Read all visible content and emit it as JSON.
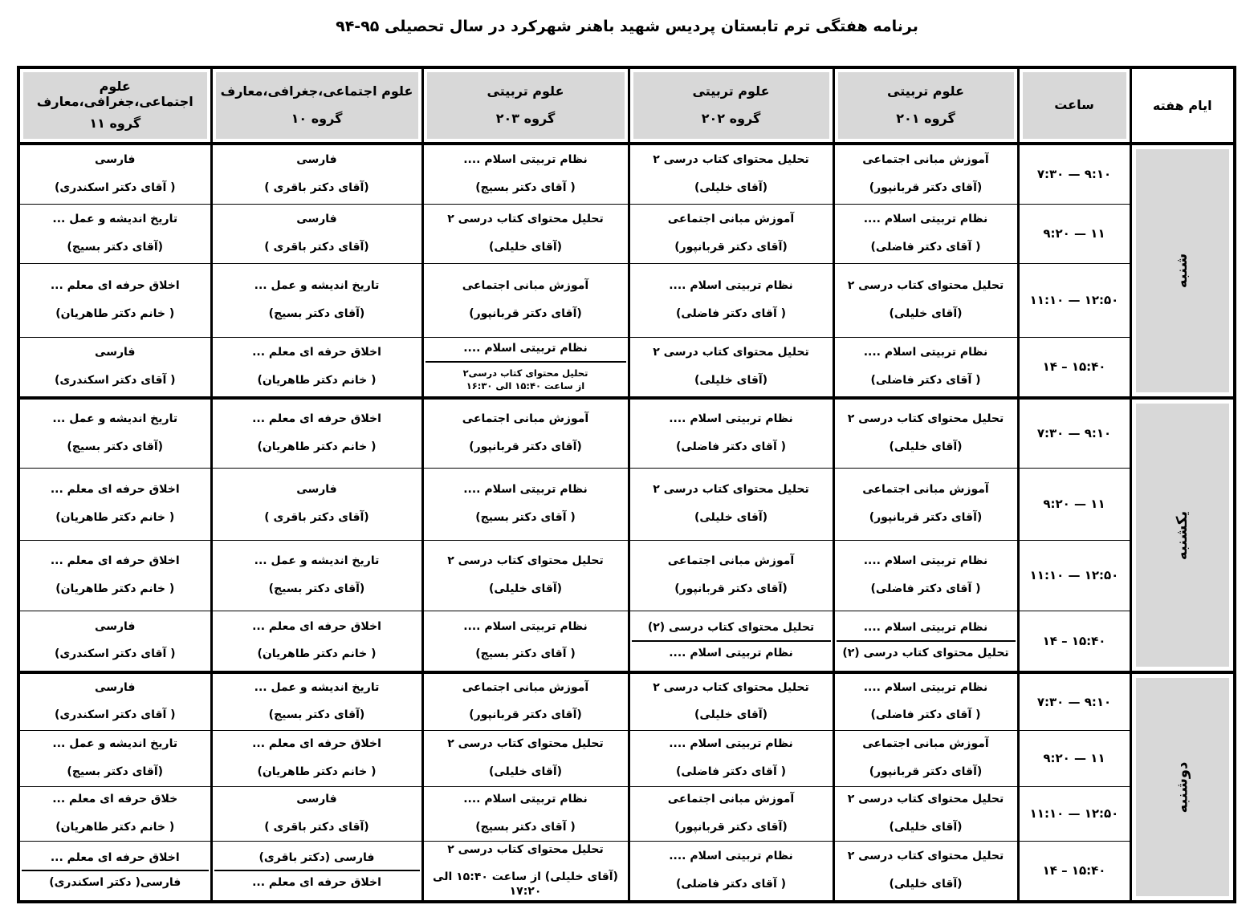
{
  "title": "برنامه هفتگی ترم تابستان پردیس شهید باهنر شهرکرد در سال تحصیلی ۹۵-۹۴",
  "colors": {
    "header_bg": "#d8d8d8",
    "border": "#000000",
    "text": "#000000"
  },
  "header": {
    "days": "ایام هفته",
    "time": "ساعت",
    "groups": [
      {
        "dept": "علوم تربیتی",
        "num": "گروه ۲۰۱"
      },
      {
        "dept": "علوم تربیتی",
        "num": "گروه ۲۰۲"
      },
      {
        "dept": "علوم تربیتی",
        "num": "گروه ۲۰۳"
      },
      {
        "dept": "علوم اجتماعی،جغرافی،معارف",
        "num": "گروه ۱۰"
      },
      {
        "dept": "علوم اجتماعی،جغرافی،معارف",
        "num": "گروه ۱۱"
      }
    ]
  },
  "days": [
    {
      "name": "شنبه",
      "slots": [
        {
          "time": "۷:۳۰ — ۹:۱۰",
          "cells": [
            {
              "entries": [
                {
                  "course": "آموزش مبانی اجتماعی",
                  "teacher": "(آقای دکتر قربانپور)"
                }
              ]
            },
            {
              "entries": [
                {
                  "course": "تحلیل محتوای کتاب درسی ۲",
                  "teacher": "(آقای خلیلی)"
                }
              ]
            },
            {
              "entries": [
                {
                  "course": "نظام تربیتی اسلام ....",
                  "teacher": "( آقای دکتر بسیج)"
                }
              ]
            },
            {
              "entries": [
                {
                  "course": "فارسی",
                  "teacher": "(آقای دکتر باقری )"
                }
              ]
            },
            {
              "entries": [
                {
                  "course": "فارسی",
                  "teacher": "( آقای دکتر اسکندری)"
                }
              ]
            }
          ]
        },
        {
          "time": "۹:۲۰ — ۱۱",
          "cells": [
            {
              "entries": [
                {
                  "course": "نظام تربیتی اسلام ....",
                  "teacher": "( آقای دکتر فاضلی)"
                }
              ]
            },
            {
              "entries": [
                {
                  "course": "آموزش مبانی اجتماعی",
                  "teacher": "(آقای دکتر قربانپور)"
                }
              ]
            },
            {
              "entries": [
                {
                  "course": "تحلیل محتوای کتاب درسی ۲",
                  "teacher": "(آقای خلیلی)"
                }
              ]
            },
            {
              "entries": [
                {
                  "course": "فارسی",
                  "teacher": "(آقای دکتر باقری )"
                }
              ]
            },
            {
              "entries": [
                {
                  "course": "تاریخ اندیشه و عمل ...",
                  "teacher": "(آقای دکتر بسیج)"
                }
              ]
            }
          ]
        },
        {
          "time": "۱۱:۱۰ — ۱۲:۵۰",
          "cells": [
            {
              "entries": [
                {
                  "course": "تحلیل محتوای کتاب درسی ۲",
                  "teacher": "(آقای خلیلی)"
                }
              ]
            },
            {
              "entries": [
                {
                  "course": "نظام تربیتی اسلام ....",
                  "teacher": "( آقای دکتر فاضلی)"
                }
              ]
            },
            {
              "entries": [
                {
                  "course": "آموزش مبانی اجتماعی",
                  "teacher": "(آقای دکتر قربانپور)"
                }
              ]
            },
            {
              "entries": [
                {
                  "course": "تاریخ اندیشه و عمل ...",
                  "teacher": "(آقای دکتر بسیج)"
                }
              ]
            },
            {
              "entries": [
                {
                  "course": "اخلاق حرفه ای معلم ...",
                  "teacher": "( خانم دکتر طاهریان)"
                }
              ]
            }
          ]
        },
        {
          "time": "۱۴ – ۱۵:۴۰",
          "cells": [
            {
              "entries": [
                {
                  "course": "نظام تربیتی اسلام ....",
                  "teacher": "( آقای دکتر فاضلی)"
                }
              ]
            },
            {
              "entries": [
                {
                  "course": "تحلیل محتوای کتاب درسی ۲",
                  "teacher": "(آقای خلیلی)"
                }
              ]
            },
            {
              "entries": [
                {
                  "course": "نظام تربیتی اسلام ...."
                },
                {
                  "course": "تحلیل محتوای کتاب درسی۲",
                  "teacher": "از ساعت ۱۵:۴۰ الی ۱۶:۳۰",
                  "small": true
                }
              ]
            },
            {
              "entries": [
                {
                  "course": "اخلاق حرفه ای معلم ...",
                  "teacher": "( خانم دکتر طاهریان)"
                }
              ]
            },
            {
              "entries": [
                {
                  "course": "فارسی",
                  "teacher": "( آقای دکتر اسکندری)"
                }
              ]
            }
          ]
        }
      ]
    },
    {
      "name": "یکشنبه",
      "slots": [
        {
          "time": "۷:۳۰ — ۹:۱۰",
          "cells": [
            {
              "entries": [
                {
                  "course": "تحلیل محتوای کتاب درسی ۲",
                  "teacher": "(آقای خلیلی)"
                }
              ]
            },
            {
              "entries": [
                {
                  "course": "نظام تربیتی اسلام ....",
                  "teacher": "( آقای دکتر فاضلی)"
                }
              ]
            },
            {
              "entries": [
                {
                  "course": "آموزش مبانی اجتماعی",
                  "teacher": "(آقای دکتر قربانپور)"
                }
              ]
            },
            {
              "entries": [
                {
                  "course": "اخلاق حرفه ای معلم ...",
                  "teacher": "( خانم دکتر طاهریان)"
                }
              ]
            },
            {
              "entries": [
                {
                  "course": "تاریخ اندیشه و عمل ...",
                  "teacher": "(آقای دکتر بسیج)"
                }
              ]
            }
          ]
        },
        {
          "time": "۹:۲۰ — ۱۱",
          "cells": [
            {
              "entries": [
                {
                  "course": "آموزش مبانی اجتماعی",
                  "teacher": "(آقای دکتر قربانپور)"
                }
              ]
            },
            {
              "entries": [
                {
                  "course": "تحلیل محتوای کتاب درسی ۲",
                  "teacher": "(آقای خلیلی)"
                }
              ]
            },
            {
              "entries": [
                {
                  "course": "نظام تربیتی اسلام ....",
                  "teacher": "( آقای دکتر بسیج)"
                }
              ]
            },
            {
              "entries": [
                {
                  "course": "فارسی",
                  "teacher": "(آقای دکتر باقری )"
                }
              ]
            },
            {
              "entries": [
                {
                  "course": "اخلاق حرفه ای معلم ...",
                  "teacher": "( خانم دکتر طاهریان)"
                }
              ]
            }
          ]
        },
        {
          "time": "۱۱:۱۰ — ۱۲:۵۰",
          "cells": [
            {
              "entries": [
                {
                  "course": "نظام تربیتی اسلام ....",
                  "teacher": "( آقای دکتر فاضلی)"
                }
              ]
            },
            {
              "entries": [
                {
                  "course": "آموزش مبانی اجتماعی",
                  "teacher": "(آقای دکتر قربانپور)"
                }
              ]
            },
            {
              "entries": [
                {
                  "course": "تحلیل محتوای کتاب درسی ۲",
                  "teacher": "(آقای خلیلی)"
                }
              ]
            },
            {
              "entries": [
                {
                  "course": "تاریخ اندیشه و عمل ...",
                  "teacher": "(آقای دکتر بسیج)"
                }
              ]
            },
            {
              "entries": [
                {
                  "course": "اخلاق حرفه ای معلم ...",
                  "teacher": "( خانم دکتر طاهریان)"
                }
              ]
            }
          ]
        },
        {
          "time": "۱۴ – ۱۵:۴۰",
          "cells": [
            {
              "entries": [
                {
                  "course": "نظام تربیتی اسلام ...."
                },
                {
                  "course": "تحلیل محتوای کتاب درسی (۲)"
                }
              ]
            },
            {
              "entries": [
                {
                  "course": "تحلیل محتوای کتاب درسی (۲)"
                },
                {
                  "course": "نظام تربیتی اسلام ...."
                }
              ]
            },
            {
              "entries": [
                {
                  "course": "نظام تربیتی اسلام ....",
                  "teacher": "( آقای دکتر بسیج)"
                }
              ]
            },
            {
              "entries": [
                {
                  "course": "اخلاق حرفه ای معلم ...",
                  "teacher": "( خانم دکتر طاهریان)"
                }
              ]
            },
            {
              "entries": [
                {
                  "course": "فارسی",
                  "teacher": "( آقای دکتر اسکندری)"
                }
              ]
            }
          ]
        }
      ]
    },
    {
      "name": "دوشنبه",
      "slots": [
        {
          "time": "۷:۳۰ — ۹:۱۰",
          "cells": [
            {
              "entries": [
                {
                  "course": "نظام تربیتی اسلام ....",
                  "teacher": "( آقای دکتر فاضلی)"
                }
              ]
            },
            {
              "entries": [
                {
                  "course": "تحلیل محتوای کتاب درسی ۲",
                  "teacher": "(آقای خلیلی)"
                }
              ]
            },
            {
              "entries": [
                {
                  "course": "آموزش مبانی اجتماعی",
                  "teacher": "(آقای دکتر قربانپور)"
                }
              ]
            },
            {
              "entries": [
                {
                  "course": "تاریخ اندیشه و عمل ...",
                  "teacher": "(آقای دکتر بسیج)"
                }
              ]
            },
            {
              "entries": [
                {
                  "course": "فارسی",
                  "teacher": "( آقای دکتر اسکندری)"
                }
              ]
            }
          ]
        },
        {
          "time": "۹:۲۰ — ۱۱",
          "cells": [
            {
              "entries": [
                {
                  "course": "آموزش مبانی اجتماعی",
                  "teacher": "(آقای دکتر قربانپور)"
                }
              ]
            },
            {
              "entries": [
                {
                  "course": "نظام تربیتی اسلام ....",
                  "teacher": "( آقای دکتر فاضلی)"
                }
              ]
            },
            {
              "entries": [
                {
                  "course": "تحلیل محتوای کتاب درسی ۲",
                  "teacher": "(آقای خلیلی)"
                }
              ]
            },
            {
              "entries": [
                {
                  "course": "اخلاق حرفه ای معلم ...",
                  "teacher": "( خانم دکتر طاهریان)"
                }
              ]
            },
            {
              "entries": [
                {
                  "course": "تاریخ اندیشه و عمل ...",
                  "teacher": "(آقای دکتر بسیج)"
                }
              ]
            }
          ]
        },
        {
          "time": "۱۱:۱۰ — ۱۲:۵۰",
          "cells": [
            {
              "entries": [
                {
                  "course": "تحلیل محتوای کتاب درسی ۲",
                  "teacher": "(آقای خلیلی)"
                }
              ]
            },
            {
              "entries": [
                {
                  "course": "آموزش مبانی اجتماعی",
                  "teacher": "(آقای دکتر قربانپور)"
                }
              ]
            },
            {
              "entries": [
                {
                  "course": "نظام تربیتی اسلام ....",
                  "teacher": "( آقای دکتر بسیج)"
                }
              ]
            },
            {
              "entries": [
                {
                  "course": "فارسی",
                  "teacher": "(آقای دکتر باقری )"
                }
              ]
            },
            {
              "entries": [
                {
                  "course": "خلاق حرفه ای معلم ...",
                  "teacher": "( خانم دکتر طاهریان)"
                }
              ]
            }
          ]
        },
        {
          "time": "۱۴ – ۱۵:۴۰",
          "cells": [
            {
              "entries": [
                {
                  "course": "تحلیل محتوای کتاب درسی ۲",
                  "teacher": "(آقای خلیلی)"
                }
              ]
            },
            {
              "entries": [
                {
                  "course": "نظام تربیتی اسلام ....",
                  "teacher": "( آقای دکتر فاضلی)"
                }
              ]
            },
            {
              "entries": [
                {
                  "course": "تحلیل محتوای کتاب درسی ۲",
                  "teacher": "(آقای خلیلی) از ساعت ۱۵:۴۰ الی ۱۷:۲۰"
                }
              ]
            },
            {
              "entries": [
                {
                  "course": "فارسی (دکتر باقری)"
                },
                {
                  "course": "اخلاق حرفه ای معلم ..."
                }
              ]
            },
            {
              "entries": [
                {
                  "course": "اخلاق حرفه ای معلم ..."
                },
                {
                  "course": "فارسی( دکتر اسکندری)"
                }
              ]
            }
          ]
        }
      ]
    }
  ]
}
